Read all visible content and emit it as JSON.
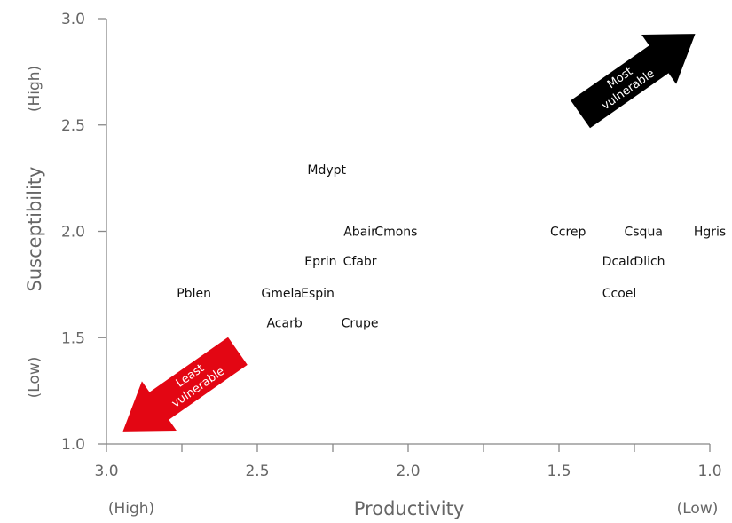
{
  "chart_data": {
    "type": "scatter",
    "xlabel": "Productivity",
    "ylabel": "Susceptibility",
    "x_axis_reversed": true,
    "xlim": [
      3.0,
      1.0
    ],
    "ylim": [
      1.0,
      3.0
    ],
    "x_ticks": [
      3.0,
      2.5,
      2.0,
      1.5,
      1.0
    ],
    "x_tick_labels": [
      "3.0",
      "2.5",
      "2.0",
      "1.5",
      "1.0"
    ],
    "y_ticks": [
      1.0,
      1.5,
      2.0,
      2.5,
      3.0
    ],
    "y_tick_labels": [
      "1.0",
      "1.5",
      "2.0",
      "2.5",
      "3.0"
    ],
    "x_axis_notes": {
      "left": "(High)",
      "right": "(Low)"
    },
    "y_axis_notes": {
      "top": "(High)",
      "bottom": "(Low)"
    },
    "grid": false,
    "points": [
      {
        "label": "Mdypt",
        "x": 2.27,
        "y": 2.29
      },
      {
        "label": "Abair",
        "x": 2.16,
        "y": 2.0
      },
      {
        "label": "Cmons",
        "x": 2.04,
        "y": 2.0
      },
      {
        "label": "Eprin",
        "x": 2.29,
        "y": 1.86
      },
      {
        "label": "Cfabr",
        "x": 2.16,
        "y": 1.86
      },
      {
        "label": "Pblen",
        "x": 2.71,
        "y": 1.71
      },
      {
        "label": "Gmela",
        "x": 2.42,
        "y": 1.71
      },
      {
        "label": "Espin",
        "x": 2.3,
        "y": 1.71
      },
      {
        "label": "Acarb",
        "x": 2.41,
        "y": 1.57
      },
      {
        "label": "Crupe",
        "x": 2.16,
        "y": 1.57
      },
      {
        "label": "Ccrep",
        "x": 1.47,
        "y": 2.0
      },
      {
        "label": "Csqua",
        "x": 1.22,
        "y": 2.0
      },
      {
        "label": "Hgris",
        "x": 1.0,
        "y": 2.0
      },
      {
        "label": "Dcalc",
        "x": 1.3,
        "y": 1.86
      },
      {
        "label": "Dlich",
        "x": 1.2,
        "y": 1.86
      },
      {
        "label": "Ccoel",
        "x": 1.3,
        "y": 1.71
      }
    ],
    "annotations": [
      {
        "text_lines": [
          "Most",
          "vulnerable"
        ],
        "color": "#000000",
        "direction": "top-right"
      },
      {
        "text_lines": [
          "Least",
          "vulnerable"
        ],
        "color": "#e30613",
        "direction": "bottom-left"
      }
    ]
  }
}
